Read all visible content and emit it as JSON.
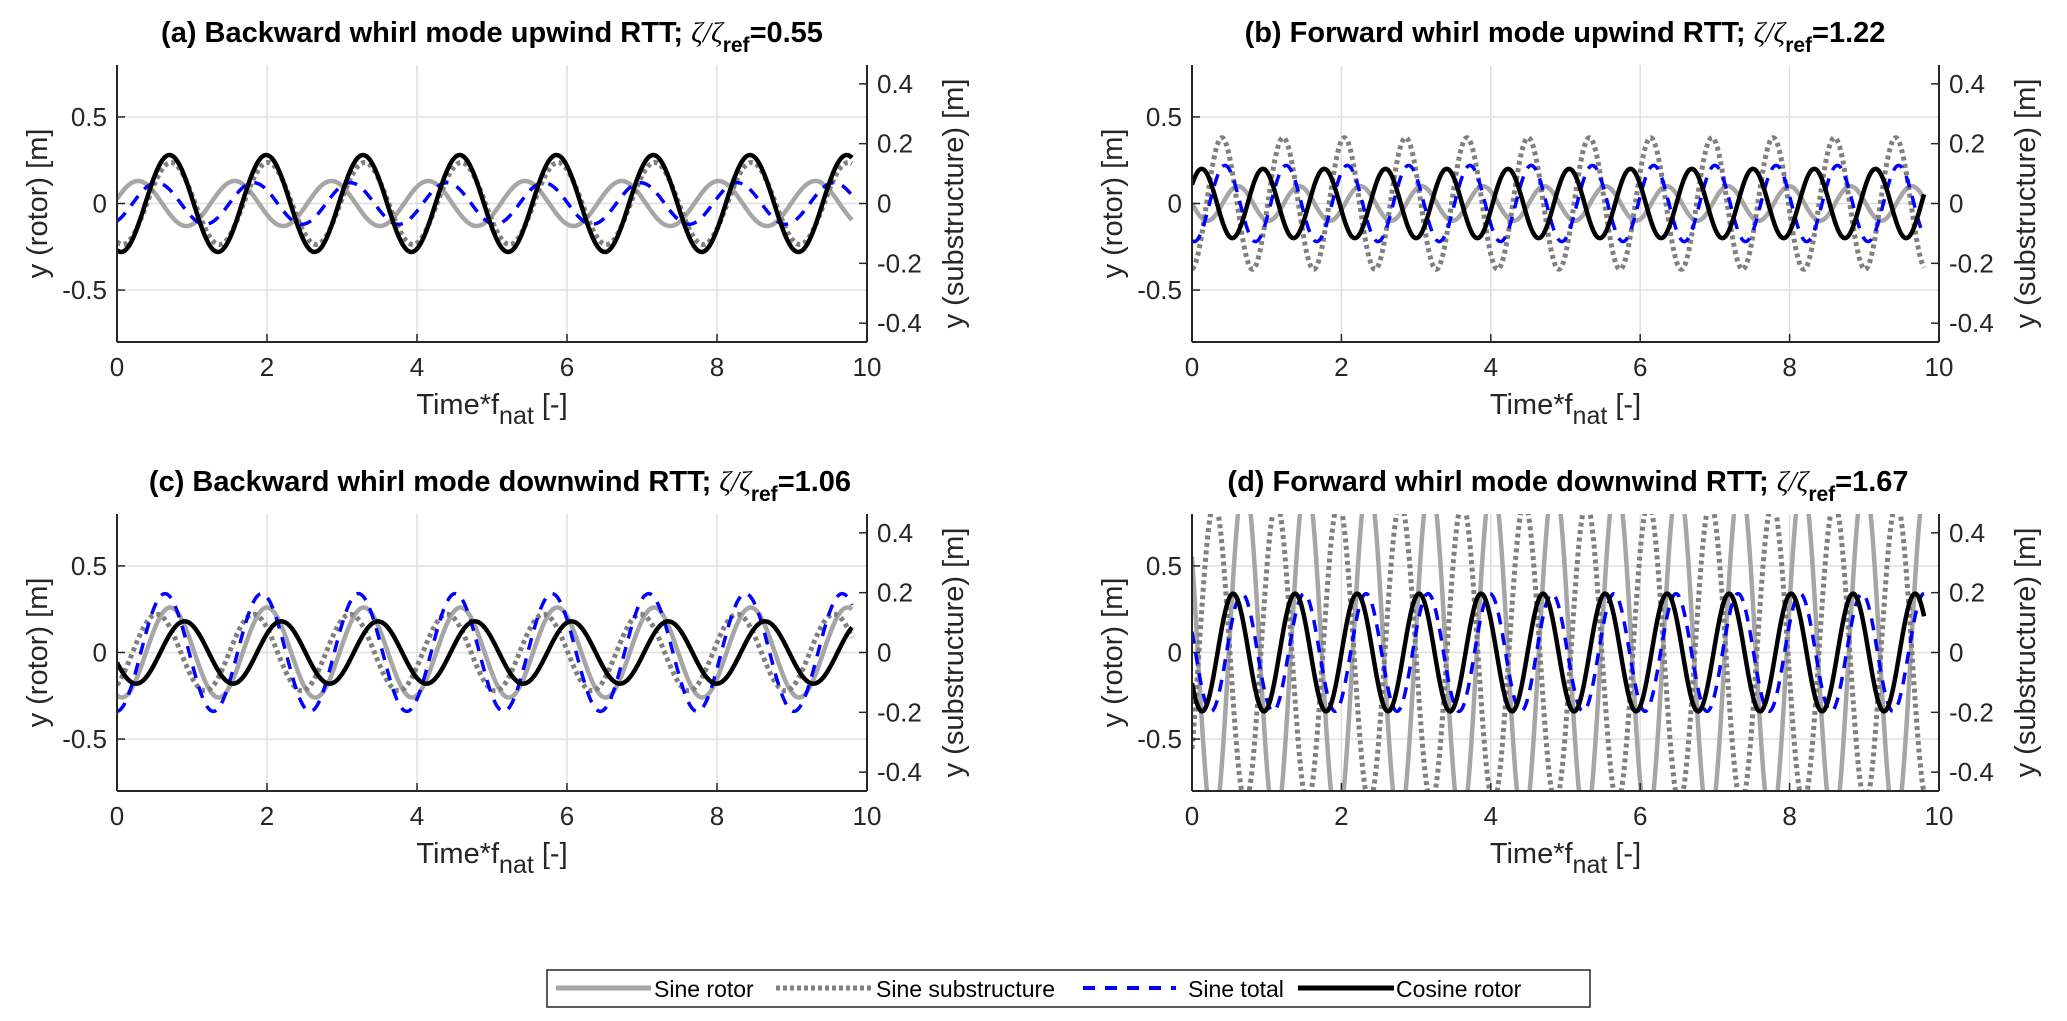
{
  "chart_data": [
    {
      "type": "line",
      "panel": "a",
      "title_prefix": "(a) Backward whirl mode upwind RTT; ",
      "title_ratio_value": "=0.55",
      "xlabel": "Time*f",
      "xlabel_sub": "nat",
      "xlabel_suffix": " [-]",
      "ylabel_left": "y (rotor) [m]",
      "ylabel_right": "y (substructure) [m]",
      "xlim": [
        0,
        10
      ],
      "ylim_left": [
        -0.8,
        0.8
      ],
      "ylim_right": [
        -0.463,
        0.463
      ],
      "xticks": [
        0,
        2,
        4,
        6,
        8,
        10
      ],
      "yticks_left": [
        -0.5,
        0,
        0.5
      ],
      "yticks_right": [
        -0.4,
        -0.2,
        0,
        0.2,
        0.4
      ],
      "grid": true,
      "t_end": 9.8,
      "period": 1.29,
      "series": [
        {
          "name": "Sine rotor",
          "axis": "left",
          "amplitude": 0.13,
          "peak_time": 0.28
        },
        {
          "name": "Sine substructure",
          "axis": "right",
          "amplitude": 0.137,
          "peak_time": 0.72
        },
        {
          "name": "Sine total",
          "axis": "left",
          "amplitude": 0.12,
          "peak_time": 0.53
        },
        {
          "name": "Cosine rotor",
          "axis": "left",
          "amplitude": 0.28,
          "peak_time": 0.7
        }
      ]
    },
    {
      "type": "line",
      "panel": "b",
      "title_prefix": "(b) Forward whirl mode upwind RTT; ",
      "title_ratio_value": "=1.22",
      "xlabel": "Time*f",
      "xlabel_sub": "nat",
      "xlabel_suffix": " [-]",
      "ylabel_left": "y (rotor) [m]",
      "ylabel_right": "y (substructure) [m]",
      "xlim": [
        0,
        10
      ],
      "ylim_left": [
        -0.8,
        0.8
      ],
      "ylim_right": [
        -0.463,
        0.463
      ],
      "xticks": [
        0,
        2,
        4,
        6,
        8,
        10
      ],
      "yticks_left": [
        -0.5,
        0,
        0.5
      ],
      "yticks_right": [
        -0.4,
        -0.2,
        0,
        0.2,
        0.4
      ],
      "grid": true,
      "t_end": 9.8,
      "period": 0.82,
      "series": [
        {
          "name": "Sine rotor",
          "axis": "left",
          "amplitude": 0.1,
          "peak_time": 0.615
        },
        {
          "name": "Sine substructure",
          "axis": "right",
          "amplitude": 0.22,
          "peak_time": 0.4
        },
        {
          "name": "Sine total",
          "axis": "left",
          "amplitude": 0.22,
          "peak_time": 0.44
        },
        {
          "name": "Cosine rotor",
          "axis": "left",
          "amplitude": 0.2,
          "peak_time": 0.13
        }
      ]
    },
    {
      "type": "line",
      "panel": "c",
      "title_prefix": "(c) Backward whirl mode downwind RTT; ",
      "title_ratio_value": "=1.06",
      "xlabel": "Time*f",
      "xlabel_sub": "nat",
      "xlabel_suffix": " [-]",
      "ylabel_left": "y (rotor) [m]",
      "ylabel_right": "y (substructure) [m]",
      "xlim": [
        0,
        10
      ],
      "ylim_left": [
        -0.8,
        0.8
      ],
      "ylim_right": [
        -0.463,
        0.463
      ],
      "xticks": [
        0,
        2,
        4,
        6,
        8,
        10
      ],
      "yticks_left": [
        -0.5,
        0,
        0.5
      ],
      "yticks_right": [
        -0.4,
        -0.2,
        0,
        0.2,
        0.4
      ],
      "grid": true,
      "t_end": 9.8,
      "period": 1.29,
      "series": [
        {
          "name": "Sine rotor",
          "axis": "left",
          "amplitude": 0.26,
          "peak_time": 0.71
        },
        {
          "name": "Sine substructure",
          "axis": "right",
          "amplitude": 0.128,
          "peak_time": 0.53
        },
        {
          "name": "Sine total",
          "axis": "left",
          "amplitude": 0.34,
          "peak_time": 0.64
        },
        {
          "name": "Cosine rotor",
          "axis": "left",
          "amplitude": 0.18,
          "peak_time": 0.9
        }
      ]
    },
    {
      "type": "line",
      "panel": "d",
      "title_prefix": "(d) Forward whirl mode downwind RTT; ",
      "title_ratio_value": "=1.67",
      "xlabel": "Time*f",
      "xlabel_sub": "nat",
      "xlabel_suffix": " [-]",
      "ylabel_left": "y (rotor) [m]",
      "ylabel_right": "y (substructure) [m]",
      "xlim": [
        0,
        10
      ],
      "ylim_left": [
        -0.8,
        0.8
      ],
      "ylim_right": [
        -0.463,
        0.463
      ],
      "xticks": [
        0,
        2,
        4,
        6,
        8,
        10
      ],
      "yticks_left": [
        -0.5,
        0,
        0.5
      ],
      "yticks_right": [
        -0.4,
        -0.2,
        0,
        0.2,
        0.4
      ],
      "grid": true,
      "t_end": 9.8,
      "period": 0.83,
      "series": [
        {
          "name": "Sine rotor",
          "axis": "left",
          "amplitude": 1.0,
          "peak_time": 0.7
        },
        {
          "name": "Sine substructure",
          "axis": "right",
          "amplitude": 0.5,
          "peak_time": 0.3
        },
        {
          "name": "Sine total",
          "axis": "left",
          "amplitude": 0.34,
          "peak_time": 0.67
        },
        {
          "name": "Cosine rotor",
          "axis": "left",
          "amplitude": 0.34,
          "peak_time": 0.55
        }
      ]
    }
  ],
  "ratio_symbol": "ζ/ζ",
  "ratio_sub": "ref",
  "legend": {
    "placement": "bottom-center",
    "entries": [
      {
        "label": "Sine rotor",
        "color": "#a6a6a6",
        "style": "solid"
      },
      {
        "label": "Sine substructure",
        "color": "#808080",
        "style": "dotted"
      },
      {
        "label": "Sine total",
        "color": "#0000ff",
        "style": "dashed"
      },
      {
        "label": "Cosine rotor",
        "color": "#000000",
        "style": "solid"
      }
    ]
  },
  "colors": {
    "sine_rotor": "#a6a6a6",
    "sine_substructure": "#808080",
    "sine_total": "#0000ff",
    "cosine_rotor": "#000000",
    "grid": "#dfdfdf",
    "axis": "#262626"
  }
}
